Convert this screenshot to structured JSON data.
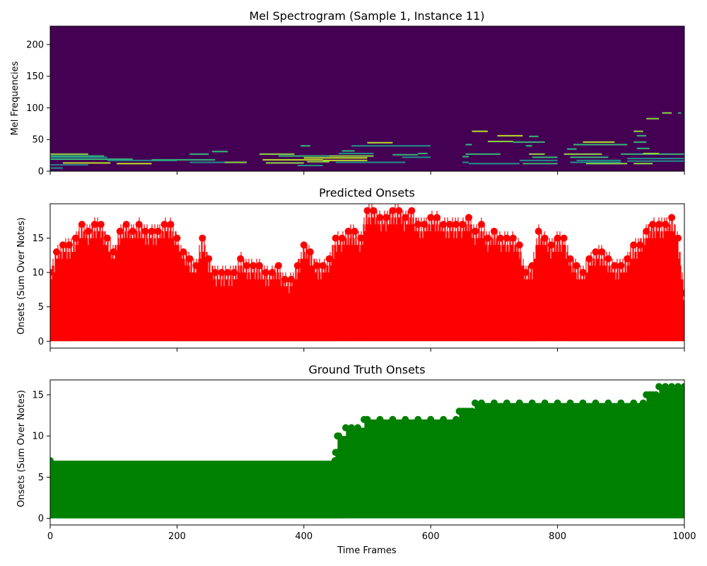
{
  "chart_data": [
    {
      "type": "heatmap",
      "title": "Mel Spectrogram (Sample 1, Instance 11)",
      "xlabel": "",
      "ylabel": "Mel Frequencies",
      "xlim": [
        0,
        1000
      ],
      "ylim": [
        0,
        229
      ],
      "xticks": [
        0,
        200,
        400,
        600,
        800,
        1000
      ],
      "yticks": [
        0,
        50,
        100,
        150,
        200
      ],
      "colormap": "viridis",
      "background_color": "#440154",
      "segments": [
        {
          "x0": 0,
          "x1": 60,
          "y": 27,
          "c": "#8fd744"
        },
        {
          "x0": 0,
          "x1": 85,
          "y": 24,
          "c": "#35b779"
        },
        {
          "x0": 0,
          "x1": 90,
          "y": 22,
          "c": "#21918c"
        },
        {
          "x0": 0,
          "x1": 130,
          "y": 19,
          "c": "#35b779"
        },
        {
          "x0": 20,
          "x1": 95,
          "y": 13,
          "c": "#bddf26"
        },
        {
          "x0": 0,
          "x1": 60,
          "y": 10,
          "c": "#2a788e"
        },
        {
          "x0": 0,
          "x1": 20,
          "y": 5,
          "c": "#21918c"
        },
        {
          "x0": 105,
          "x1": 160,
          "y": 12,
          "c": "#bddf26"
        },
        {
          "x0": 90,
          "x1": 200,
          "y": 17,
          "c": "#21918c"
        },
        {
          "x0": 160,
          "x1": 260,
          "y": 18,
          "c": "#35b779"
        },
        {
          "x0": 220,
          "x1": 300,
          "y": 14,
          "c": "#21918c"
        },
        {
          "x0": 275,
          "x1": 310,
          "y": 14,
          "c": "#8fd744"
        },
        {
          "x0": 220,
          "x1": 250,
          "y": 27,
          "c": "#35b779"
        },
        {
          "x0": 255,
          "x1": 280,
          "y": 31,
          "c": "#35b779"
        },
        {
          "x0": 330,
          "x1": 385,
          "y": 27,
          "c": "#8fd744"
        },
        {
          "x0": 335,
          "x1": 430,
          "y": 18,
          "c": "#bddf26"
        },
        {
          "x0": 340,
          "x1": 400,
          "y": 13,
          "c": "#8fd744"
        },
        {
          "x0": 360,
          "x1": 460,
          "y": 24,
          "c": "#35b779"
        },
        {
          "x0": 390,
          "x1": 430,
          "y": 9,
          "c": "#21918c"
        },
        {
          "x0": 395,
          "x1": 410,
          "y": 40,
          "c": "#35b779"
        },
        {
          "x0": 400,
          "x1": 500,
          "y": 21,
          "c": "#bddf26"
        },
        {
          "x0": 405,
          "x1": 440,
          "y": 15,
          "c": "#8fd744"
        },
        {
          "x0": 430,
          "x1": 500,
          "y": 17,
          "c": "#bddf26"
        },
        {
          "x0": 440,
          "x1": 510,
          "y": 24,
          "c": "#8fd744"
        },
        {
          "x0": 455,
          "x1": 510,
          "y": 28,
          "c": "#21918c"
        },
        {
          "x0": 460,
          "x1": 480,
          "y": 32,
          "c": "#35b779"
        },
        {
          "x0": 475,
          "x1": 600,
          "y": 40,
          "c": "#21918c"
        },
        {
          "x0": 500,
          "x1": 540,
          "y": 45,
          "c": "#bddf26"
        },
        {
          "x0": 450,
          "x1": 560,
          "y": 14,
          "c": "#21918c"
        },
        {
          "x0": 540,
          "x1": 580,
          "y": 26,
          "c": "#35b779"
        },
        {
          "x0": 555,
          "x1": 600,
          "y": 22,
          "c": "#21918c"
        },
        {
          "x0": 580,
          "x1": 595,
          "y": 28,
          "c": "#35b779"
        },
        {
          "x0": 650,
          "x1": 660,
          "y": 14,
          "c": "#21918c"
        },
        {
          "x0": 650,
          "x1": 660,
          "y": 23,
          "c": "#35b779"
        },
        {
          "x0": 655,
          "x1": 665,
          "y": 42,
          "c": "#35b779"
        },
        {
          "x0": 665,
          "x1": 690,
          "y": 63,
          "c": "#bddf26"
        },
        {
          "x0": 655,
          "x1": 710,
          "y": 27,
          "c": "#35b779"
        },
        {
          "x0": 690,
          "x1": 730,
          "y": 47,
          "c": "#8fd744"
        },
        {
          "x0": 705,
          "x1": 745,
          "y": 56,
          "c": "#bddf26"
        },
        {
          "x0": 660,
          "x1": 740,
          "y": 12,
          "c": "#21918c"
        },
        {
          "x0": 730,
          "x1": 780,
          "y": 46,
          "c": "#35b779"
        },
        {
          "x0": 760,
          "x1": 800,
          "y": 22,
          "c": "#35b779"
        },
        {
          "x0": 755,
          "x1": 780,
          "y": 27,
          "c": "#8fd744"
        },
        {
          "x0": 755,
          "x1": 770,
          "y": 55,
          "c": "#35b779"
        },
        {
          "x0": 740,
          "x1": 800,
          "y": 17,
          "c": "#21918c"
        },
        {
          "x0": 750,
          "x1": 760,
          "y": 40,
          "c": "#35b779"
        },
        {
          "x0": 745,
          "x1": 800,
          "y": 12,
          "c": "#35b779"
        },
        {
          "x0": 810,
          "x1": 870,
          "y": 27,
          "c": "#8fd744"
        },
        {
          "x0": 820,
          "x1": 880,
          "y": 22,
          "c": "#35b779"
        },
        {
          "x0": 830,
          "x1": 900,
          "y": 17,
          "c": "#21918c"
        },
        {
          "x0": 845,
          "x1": 910,
          "y": 12,
          "c": "#8fd744"
        },
        {
          "x0": 820,
          "x1": 900,
          "y": 14,
          "c": "#21918c"
        },
        {
          "x0": 815,
          "x1": 830,
          "y": 35,
          "c": "#35b779"
        },
        {
          "x0": 825,
          "x1": 910,
          "y": 42,
          "c": "#35b779"
        },
        {
          "x0": 840,
          "x1": 890,
          "y": 46,
          "c": "#bddf26"
        },
        {
          "x0": 920,
          "x1": 950,
          "y": 12,
          "c": "#8fd744"
        },
        {
          "x0": 910,
          "x1": 1000,
          "y": 20,
          "c": "#21918c"
        },
        {
          "x0": 900,
          "x1": 1000,
          "y": 27,
          "c": "#35b779"
        },
        {
          "x0": 910,
          "x1": 1000,
          "y": 16,
          "c": "#21918c"
        },
        {
          "x0": 935,
          "x1": 960,
          "y": 28,
          "c": "#8fd744"
        },
        {
          "x0": 925,
          "x1": 945,
          "y": 36,
          "c": "#35b779"
        },
        {
          "x0": 920,
          "x1": 940,
          "y": 46,
          "c": "#35b779"
        },
        {
          "x0": 925,
          "x1": 940,
          "y": 56,
          "c": "#35b779"
        },
        {
          "x0": 920,
          "x1": 935,
          "y": 63,
          "c": "#8fd744"
        },
        {
          "x0": 940,
          "x1": 960,
          "y": 83,
          "c": "#8fd744"
        },
        {
          "x0": 965,
          "x1": 980,
          "y": 92,
          "c": "#8fd744"
        },
        {
          "x0": 990,
          "x1": 995,
          "y": 92,
          "c": "#35b779"
        }
      ]
    },
    {
      "type": "scatter",
      "title": "Predicted Onsets",
      "xlabel": "",
      "ylabel": "Onsets (Sum Over Notes)",
      "xlim": [
        0,
        1000
      ],
      "ylim": [
        -1,
        20
      ],
      "xticks": [
        0,
        200,
        400,
        600,
        800,
        1000
      ],
      "yticks": [
        0,
        5,
        10,
        15
      ],
      "color": "#ff0000",
      "x": [
        0,
        10,
        20,
        30,
        40,
        50,
        60,
        70,
        80,
        90,
        100,
        110,
        120,
        130,
        140,
        150,
        160,
        170,
        180,
        190,
        200,
        210,
        220,
        230,
        240,
        250,
        260,
        270,
        280,
        290,
        300,
        310,
        320,
        330,
        340,
        350,
        360,
        370,
        380,
        390,
        400,
        410,
        420,
        430,
        440,
        450,
        460,
        470,
        480,
        490,
        500,
        510,
        520,
        530,
        540,
        550,
        560,
        570,
        580,
        590,
        600,
        610,
        620,
        630,
        640,
        650,
        660,
        670,
        680,
        690,
        700,
        710,
        720,
        730,
        740,
        750,
        760,
        770,
        780,
        790,
        800,
        810,
        820,
        830,
        840,
        850,
        860,
        870,
        880,
        890,
        900,
        910,
        920,
        930,
        940,
        950,
        960,
        970,
        980,
        990,
        1000
      ],
      "y": [
        10,
        13,
        14,
        14,
        15,
        17,
        16,
        17,
        17,
        15,
        13,
        16,
        17,
        16,
        17,
        16,
        16,
        16,
        17,
        17,
        15,
        13,
        12,
        11,
        15,
        12,
        10,
        10,
        10,
        10,
        12,
        11,
        11,
        11,
        10,
        10,
        11,
        9,
        9,
        11,
        14,
        13,
        11,
        11,
        12,
        15,
        15,
        16,
        16,
        15,
        19,
        19,
        18,
        18,
        19,
        19,
        18,
        19,
        17,
        17,
        18,
        18,
        17,
        17,
        17,
        17,
        18,
        16,
        17,
        15,
        16,
        15,
        15,
        15,
        14,
        10,
        11,
        16,
        15,
        14,
        15,
        15,
        12,
        11,
        10,
        12,
        13,
        13,
        12,
        11,
        11,
        12,
        14,
        14,
        16,
        17,
        17,
        17,
        18,
        15,
        7
      ]
    },
    {
      "type": "scatter",
      "title": "Ground Truth Onsets",
      "xlabel": "Time Frames",
      "ylabel": "Onsets (Sum Over Notes)",
      "xlim": [
        0,
        1000
      ],
      "ylim": [
        -0.8,
        16.8
      ],
      "xticks": [
        0,
        200,
        400,
        600,
        800,
        1000
      ],
      "yticks": [
        0,
        5,
        10,
        15
      ],
      "color": "#008000",
      "x": [
        0,
        449,
        450,
        451,
        453,
        455,
        466,
        475,
        485,
        495,
        500,
        520,
        540,
        560,
        580,
        600,
        620,
        640,
        645,
        650,
        655,
        660,
        665,
        670,
        680,
        700,
        720,
        740,
        760,
        780,
        800,
        820,
        840,
        860,
        880,
        900,
        920,
        935,
        940,
        945,
        950,
        955,
        960,
        970,
        980,
        990,
        1000
      ],
      "y": [
        7,
        7,
        8,
        8,
        10,
        10,
        11,
        11,
        11,
        12,
        12,
        12,
        12,
        12,
        12,
        12,
        12,
        12,
        13,
        13,
        13,
        13,
        13,
        14,
        14,
        14,
        14,
        14,
        14,
        14,
        14,
        14,
        14,
        14,
        14,
        14,
        14,
        14,
        15,
        15,
        15,
        15,
        16,
        16,
        16,
        16,
        16
      ]
    }
  ]
}
